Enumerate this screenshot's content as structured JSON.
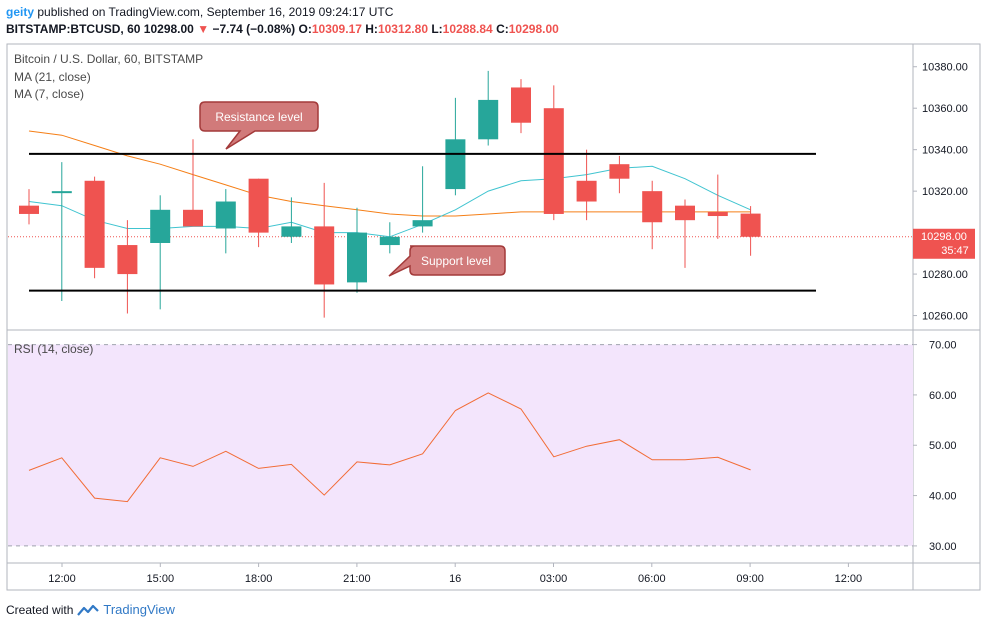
{
  "header": {
    "user": "geity",
    "published": "published on TradingView.com, September 16, 2019 09:24:17 UTC",
    "symbol": "BITSTAMP:BTCUSD, 60",
    "price": "10298.00",
    "change": "−7.74 (−0.08%)",
    "open_label": "O:",
    "open_value": "10309.17",
    "high_label": "H:",
    "high_value": "10312.80",
    "low_label": "L:",
    "low_value": "10288.84",
    "close_label": "C:",
    "close_value": "10298.00"
  },
  "legend": {
    "title": "Bitcoin / U.S. Dollar, 60, BITSTAMP",
    "ma21": "MA (21, close)",
    "ma7": "MA (7, close)",
    "rsi": "RSI (14, close)"
  },
  "annotations": {
    "resistance": "Resistance level",
    "support": "Support level"
  },
  "price_tag": {
    "price": "10298.00",
    "timer": "35:47"
  },
  "footer": {
    "created_with": "Created with",
    "brand": "TradingView"
  },
  "colors": {
    "up": "#26a69a",
    "down": "#ef5350",
    "ma21": "#f57f17",
    "ma7": "#40c4d0",
    "rsi_line": "#f26c36",
    "rsi_band": "#f3e5fc",
    "callout_fill": "#d17a7a",
    "callout_border": "#a33a3a"
  },
  "chart_data": [
    {
      "type": "candlestick",
      "title": "Bitcoin / U.S. Dollar, 60, BITSTAMP",
      "x_ticks": [
        "12:00",
        "15:00",
        "18:00",
        "21:00",
        "16",
        "03:00",
        "06:00",
        "09:00",
        "12:00"
      ],
      "y_ticks": [
        "10260.00",
        "10280.00",
        "10300.00",
        "10320.00",
        "10340.00",
        "10360.00",
        "10380.00"
      ],
      "ylim": [
        10254,
        10390
      ],
      "grid": false,
      "ohlc": [
        [
          10313,
          10321,
          10304,
          10309
        ],
        [
          10320,
          10334,
          10267,
          10320
        ],
        [
          10325,
          10327,
          10278,
          10283
        ],
        [
          10294,
          10306,
          10261,
          10280
        ],
        [
          10295,
          10318,
          10263,
          10311
        ],
        [
          10311,
          10345,
          10303,
          10303
        ],
        [
          10302,
          10321,
          10290,
          10315
        ],
        [
          10326,
          10326,
          10293,
          10300
        ],
        [
          10298,
          10317,
          10295,
          10303
        ],
        [
          10303,
          10324,
          10259,
          10275
        ],
        [
          10276,
          10312,
          10271,
          10300
        ],
        [
          10294,
          10305,
          10290,
          10298
        ],
        [
          10303,
          10332,
          10300,
          10306
        ],
        [
          10321,
          10365,
          10318,
          10345
        ],
        [
          10345,
          10378,
          10342,
          10364
        ],
        [
          10370,
          10374,
          10348,
          10353
        ],
        [
          10360,
          10371,
          10306,
          10309
        ],
        [
          10325,
          10340,
          10306,
          10315
        ],
        [
          10333,
          10337,
          10319,
          10326
        ],
        [
          10320,
          10325,
          10292,
          10305
        ],
        [
          10313,
          10316,
          10283,
          10306
        ],
        [
          10310,
          10328,
          10297,
          10308
        ],
        [
          10309.17,
          10312.8,
          10288.84,
          10298
        ]
      ],
      "series": [
        {
          "name": "MA (21, close)",
          "values": [
            10349,
            10347,
            10342,
            10337,
            10333,
            10328,
            10323,
            10318,
            10315,
            10313,
            10311,
            10309,
            10308,
            10308,
            10309,
            10310,
            10310,
            10310,
            10310,
            10310,
            10310,
            10310,
            10310
          ]
        },
        {
          "name": "MA (7, close)",
          "values": [
            10315,
            10313,
            10306,
            10302,
            10302,
            10303,
            10303,
            10302,
            10305,
            10300,
            10300,
            10298,
            10304,
            10311,
            10320,
            10325,
            10326,
            10328,
            10331,
            10332,
            10326,
            10318,
            10311
          ]
        }
      ],
      "resistance": 10338,
      "support": 10272,
      "current_price": 10298
    },
    {
      "type": "line",
      "title": "RSI (14, close)",
      "y_ticks": [
        "30.00",
        "40.00",
        "50.00",
        "60.00",
        "70.00"
      ],
      "ylim": [
        27,
        72.5
      ],
      "band": [
        30,
        70
      ],
      "series": [
        {
          "name": "RSI (14, close)",
          "values": [
            45,
            47.5,
            39.5,
            38.8,
            47.5,
            45.8,
            48.8,
            45.4,
            46.2,
            40.1,
            46.7,
            46.1,
            48.3,
            56.9,
            60.4,
            57.2,
            47.7,
            49.8,
            51.1,
            47.1,
            47.1,
            47.6,
            45.1
          ]
        }
      ]
    }
  ]
}
